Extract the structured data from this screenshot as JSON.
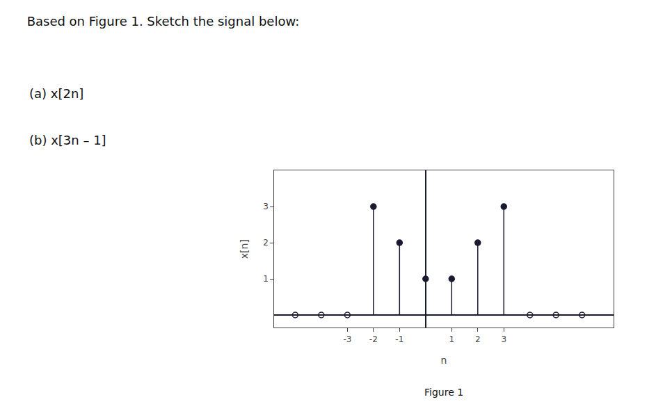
{
  "chart_data": {
    "type": "stem",
    "title": "Based on Figure 1. Sketch the signal below:",
    "annotations": [
      "(a) x[2n]",
      "(b) x[3n – 1]",
      "Figure 1"
    ],
    "xlabel": "n",
    "ylabel": "x[n]",
    "x": [
      -5,
      -4,
      -3,
      -2,
      -1,
      0,
      1,
      2,
      3,
      4,
      5,
      6
    ],
    "values": [
      0,
      0,
      0,
      3,
      2,
      1,
      1,
      2,
      3,
      0,
      0,
      0
    ],
    "color": "#1a1a2e",
    "xlim": [
      -5.8,
      7.2
    ],
    "ylim": [
      -0.35,
      4.0
    ],
    "xticks": [
      -3,
      -2,
      -1,
      1,
      2,
      3
    ],
    "yticks": [
      1,
      2,
      3
    ],
    "grid": false
  }
}
